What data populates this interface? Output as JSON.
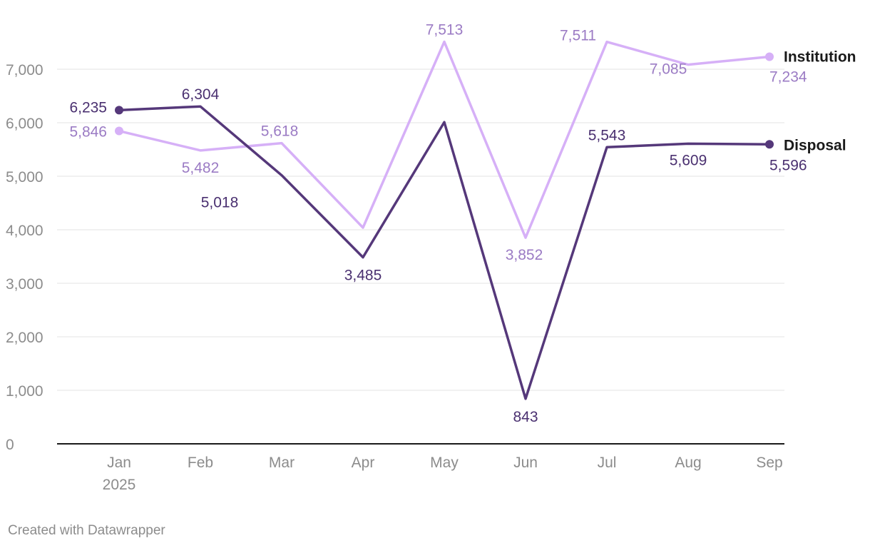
{
  "chart_data": {
    "type": "line",
    "categories": [
      "Jan",
      "Feb",
      "Mar",
      "Apr",
      "May",
      "Jun",
      "Jul",
      "Aug",
      "Sep"
    ],
    "x_sublabel": "2025",
    "ylim": [
      0,
      7500
    ],
    "yticks": [
      0,
      1000,
      2000,
      3000,
      4000,
      5000,
      6000,
      7000
    ],
    "ytick_labels": [
      "0",
      "1,000",
      "2,000",
      "3,000",
      "4,000",
      "5,000",
      "6,000",
      "7,000"
    ],
    "grid": true,
    "series": [
      {
        "name": "Institution",
        "color": "#d6b0f7",
        "label_color": "#9b7bc4",
        "values": [
          5846,
          5482,
          5618,
          4040,
          7513,
          3852,
          7511,
          7085,
          7234
        ],
        "labels": [
          "5,846",
          "5,482",
          "5,618",
          null,
          "7,513",
          "3,852",
          "7,511",
          "7,085",
          "7,234"
        ]
      },
      {
        "name": "Disposal",
        "color": "#55387a",
        "label_color": "#4a3070",
        "values": [
          6235,
          6304,
          5018,
          3485,
          6010,
          843,
          5543,
          5609,
          5596
        ],
        "labels": [
          "6,235",
          "6,304",
          "5,018",
          "3,485",
          null,
          "843",
          "5,543",
          "5,609",
          "5,596"
        ]
      }
    ]
  },
  "footer": {
    "credit": "Created with Datawrapper"
  }
}
